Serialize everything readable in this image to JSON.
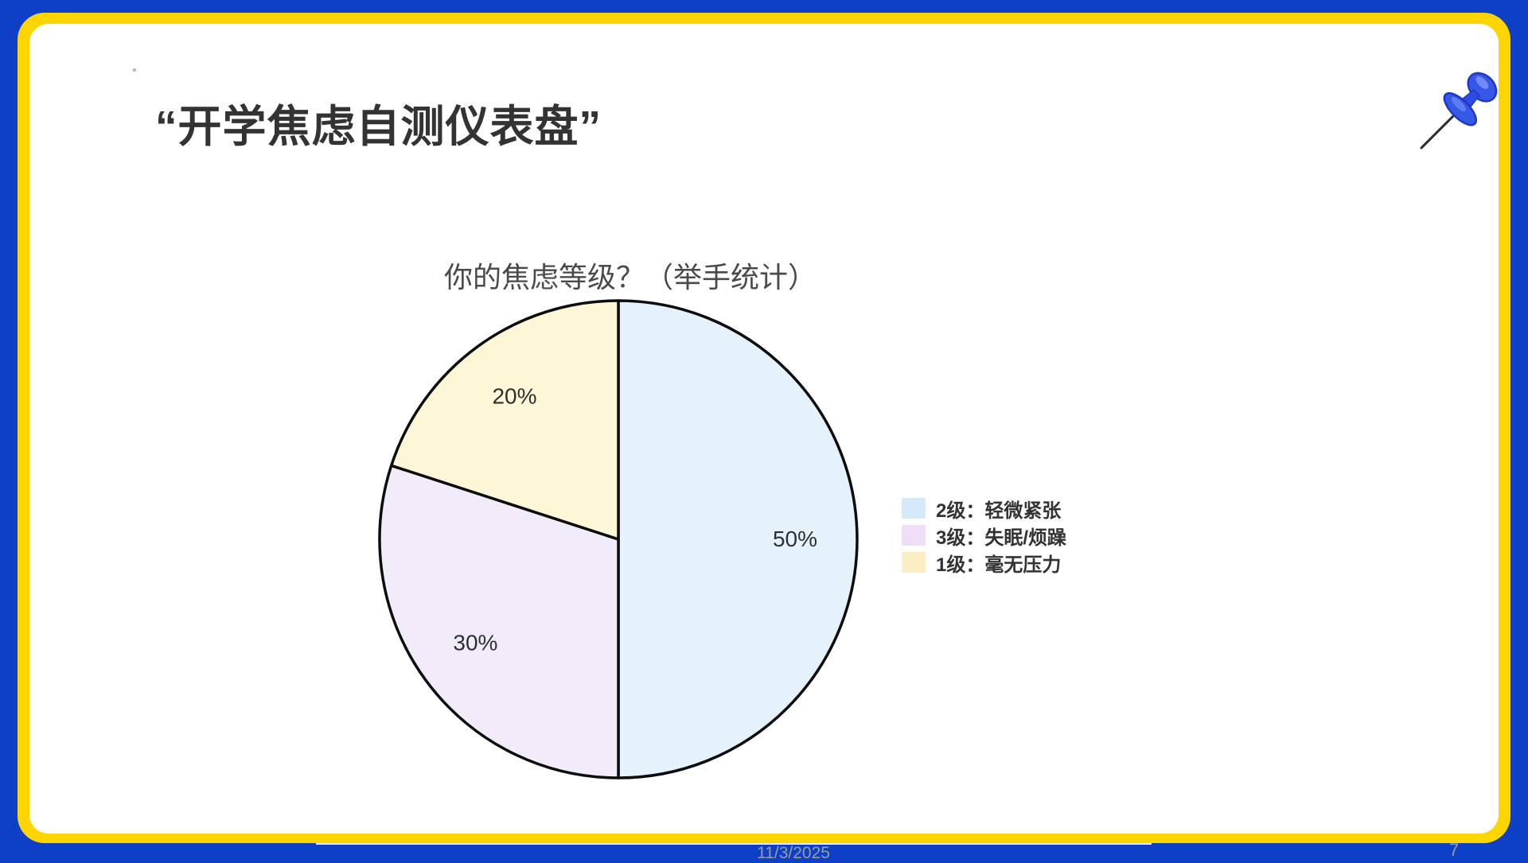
{
  "slide": {
    "title": "“开学焦虑自测仪表盘”",
    "footer": {
      "date": "11/3/2025",
      "page_number": "7"
    }
  },
  "chart_data": {
    "type": "pie",
    "title": "你的焦虑等级？（举手统计）",
    "start_angle_deg": 0,
    "direction": "clockwise",
    "legend_position": "right",
    "stroke_color": "#0d0d0d",
    "stroke_width": 3.5,
    "categories": [
      "2级：轻微紧张",
      "3级：失眠/烦躁",
      "1级：毫无压力"
    ],
    "values": [
      50,
      30,
      20
    ],
    "slices": [
      {
        "label": "2级：轻微紧张",
        "value": 50,
        "pct_label": "50%",
        "color": "#e5f2fb",
        "legend_color": "#d4eaf8"
      },
      {
        "label": "3级：失眠/烦躁",
        "value": 30,
        "pct_label": "30%",
        "color": "#f2ebfa",
        "legend_color": "#efdef8"
      },
      {
        "label": "1级：毫无压力",
        "value": 20,
        "pct_label": "20%",
        "color": "#fdf6d7",
        "legend_color": "#fceec4"
      }
    ]
  },
  "icons": {
    "top_right": "pushpin-icon"
  },
  "theme": {
    "frame_blue": "#0d40c6",
    "frame_yellow": "#ffd500",
    "pushpin_blue": "#3558e6",
    "title_color": "#333333",
    "footer_text_color": "#9a9a9a"
  }
}
